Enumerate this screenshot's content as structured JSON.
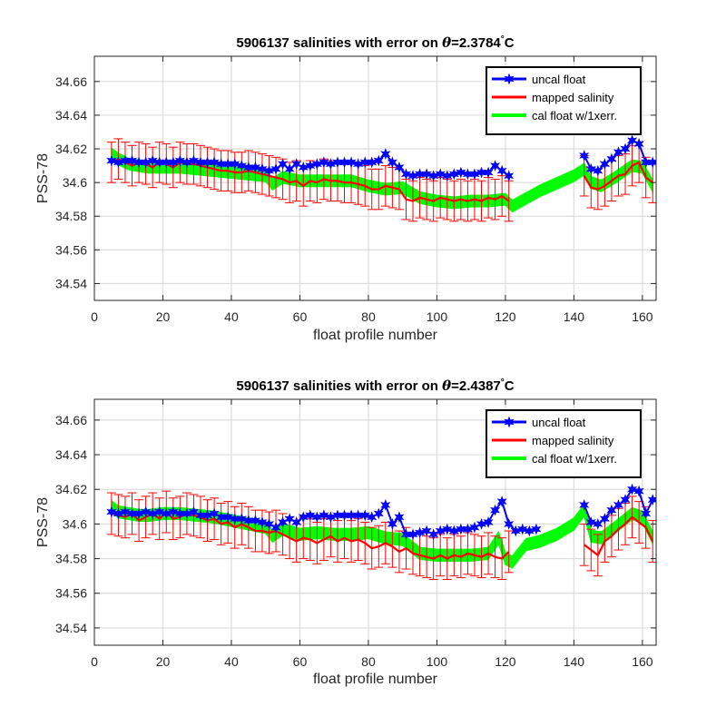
{
  "chart_data": [
    {
      "type": "line",
      "title": "5906137 salinities with error on θ=2.3784°C",
      "title_prefix": "5906137 salinities with error on ",
      "title_theta": "θ",
      "title_value": "=2.3784",
      "title_degree": "°",
      "title_unit": "C",
      "xlabel": "float profile number",
      "ylabel": "PSS-78",
      "xlim": [
        0,
        164
      ],
      "ylim": [
        34.53,
        34.675
      ],
      "xticks": [
        0,
        20,
        40,
        60,
        80,
        100,
        120,
        140,
        160
      ],
      "xtick_labels": [
        "0",
        "20",
        "40",
        "60",
        "80",
        "100",
        "120",
        "140",
        "160"
      ],
      "yticks": [
        34.54,
        34.56,
        34.58,
        34.6,
        34.62,
        34.64,
        34.66
      ],
      "ytick_labels": [
        "34.54",
        "34.56",
        "34.58",
        "34.6",
        "34.62",
        "34.64",
        "34.66"
      ],
      "grid": true,
      "legend_position": "top-right",
      "colors": {
        "uncal": "#0000ff",
        "mapped": "#ff0000",
        "cal": "#00ff00"
      },
      "series": [
        {
          "name": "uncal float",
          "marker": "star",
          "x": [
            5,
            7,
            9,
            11,
            13,
            15,
            17,
            19,
            21,
            23,
            25,
            27,
            29,
            31,
            33,
            35,
            37,
            39,
            41,
            43,
            45,
            47,
            49,
            51,
            53,
            55,
            57,
            59,
            61,
            63,
            65,
            67,
            69,
            71,
            73,
            75,
            77,
            79,
            81,
            83,
            85,
            87,
            89,
            91,
            93,
            95,
            97,
            99,
            101,
            103,
            105,
            107,
            109,
            111,
            113,
            115,
            117,
            119,
            121,
            143,
            145,
            147,
            149,
            151,
            153,
            155,
            157,
            159,
            161,
            163
          ],
          "values": [
            34.613,
            34.612,
            34.613,
            34.613,
            34.612,
            34.612,
            34.613,
            34.612,
            34.612,
            34.612,
            34.613,
            34.612,
            34.613,
            34.612,
            34.612,
            34.612,
            34.611,
            34.611,
            34.611,
            34.61,
            34.609,
            34.609,
            34.608,
            34.607,
            34.608,
            34.611,
            34.608,
            34.611,
            34.609,
            34.61,
            34.611,
            34.612,
            34.611,
            34.612,
            34.612,
            34.612,
            34.611,
            34.612,
            34.612,
            34.613,
            34.617,
            34.612,
            34.609,
            34.605,
            34.604,
            34.605,
            34.605,
            34.604,
            34.605,
            34.604,
            34.605,
            34.606,
            34.605,
            34.605,
            34.606,
            34.606,
            34.61,
            34.607,
            34.604,
            34.616,
            34.608,
            34.607,
            34.611,
            34.614,
            34.618,
            34.62,
            34.625,
            34.623,
            34.612,
            34.612
          ]
        },
        {
          "name": "mapped salinity",
          "x": [
            5,
            7,
            9,
            11,
            13,
            15,
            17,
            19,
            21,
            23,
            25,
            27,
            29,
            31,
            33,
            35,
            37,
            39,
            41,
            43,
            45,
            47,
            49,
            51,
            53,
            55,
            57,
            59,
            61,
            63,
            65,
            67,
            69,
            71,
            73,
            75,
            77,
            79,
            81,
            83,
            85,
            87,
            89,
            91,
            93,
            95,
            97,
            99,
            101,
            103,
            105,
            107,
            109,
            111,
            113,
            115,
            117,
            119,
            121,
            143,
            145,
            147,
            149,
            151,
            153,
            155,
            157,
            159,
            161,
            163
          ],
          "values": [
            34.612,
            34.614,
            34.612,
            34.61,
            34.612,
            34.611,
            34.609,
            34.612,
            34.611,
            34.609,
            34.612,
            34.611,
            34.611,
            34.61,
            34.609,
            34.608,
            34.607,
            34.607,
            34.606,
            34.606,
            34.607,
            34.606,
            34.605,
            34.604,
            34.603,
            34.602,
            34.6,
            34.601,
            34.598,
            34.601,
            34.6,
            34.602,
            34.601,
            34.601,
            34.6,
            34.6,
            34.599,
            34.598,
            34.596,
            34.596,
            34.598,
            34.597,
            34.596,
            34.59,
            34.589,
            34.591,
            34.59,
            34.589,
            34.591,
            34.59,
            34.589,
            34.59,
            34.589,
            34.59,
            34.589,
            34.591,
            34.59,
            34.592,
            34.589,
            34.604,
            34.597,
            34.596,
            34.598,
            34.601,
            34.604,
            34.605,
            34.61,
            34.612,
            34.603,
            34.6
          ],
          "error": 0.012
        },
        {
          "name": "cal float w/1xerr.",
          "x": [
            5,
            7,
            10,
            13,
            16,
            20,
            25,
            30,
            35,
            40,
            45,
            50,
            52,
            55,
            60,
            65,
            70,
            75,
            80,
            85,
            90,
            95,
            100,
            105,
            110,
            115,
            120,
            122,
            130,
            140,
            143,
            145,
            148,
            152,
            157,
            160,
            163
          ],
          "values": [
            34.617,
            34.614,
            34.611,
            34.61,
            34.609,
            34.609,
            34.609,
            34.608,
            34.607,
            34.606,
            34.605,
            34.604,
            34.599,
            34.603,
            34.601,
            34.601,
            34.601,
            34.601,
            34.598,
            34.596,
            34.597,
            34.591,
            34.589,
            34.588,
            34.589,
            34.589,
            34.59,
            34.586,
            34.595,
            34.604,
            34.608,
            34.6,
            34.598,
            34.603,
            34.61,
            34.609,
            34.598
          ],
          "band_halfwidth": 0.0035
        }
      ]
    },
    {
      "type": "line",
      "title": "5906137 salinities with error on θ=2.4387°C",
      "title_prefix": "5906137 salinities with error on ",
      "title_theta": "θ",
      "title_value": "=2.4387",
      "title_degree": "°",
      "title_unit": "C",
      "xlabel": "float profile number",
      "ylabel": "PSS-78",
      "xlim": [
        0,
        164
      ],
      "ylim": [
        34.53,
        34.672
      ],
      "xticks": [
        0,
        20,
        40,
        60,
        80,
        100,
        120,
        140,
        160
      ],
      "xtick_labels": [
        "0",
        "20",
        "40",
        "60",
        "80",
        "100",
        "120",
        "140",
        "160"
      ],
      "yticks": [
        34.54,
        34.56,
        34.58,
        34.6,
        34.62,
        34.64,
        34.66
      ],
      "ytick_labels": [
        "34.54",
        "34.56",
        "34.58",
        "34.6",
        "34.62",
        "34.64",
        "34.66"
      ],
      "grid": true,
      "legend_position": "top-right",
      "colors": {
        "uncal": "#0000ff",
        "mapped": "#ff0000",
        "cal": "#00ff00"
      },
      "series": [
        {
          "name": "uncal float",
          "marker": "star",
          "x": [
            5,
            7,
            9,
            11,
            13,
            15,
            17,
            19,
            21,
            23,
            25,
            27,
            29,
            31,
            33,
            35,
            37,
            39,
            41,
            43,
            45,
            47,
            49,
            51,
            53,
            55,
            57,
            59,
            61,
            63,
            65,
            67,
            69,
            71,
            73,
            75,
            77,
            79,
            81,
            83,
            85,
            87,
            89,
            91,
            93,
            95,
            97,
            99,
            101,
            103,
            105,
            107,
            109,
            111,
            113,
            115,
            117,
            119,
            121,
            123,
            125,
            127,
            129,
            143,
            145,
            147,
            149,
            151,
            153,
            155,
            157,
            159,
            161,
            163
          ],
          "values": [
            34.607,
            34.606,
            34.607,
            34.606,
            34.606,
            34.607,
            34.606,
            34.607,
            34.606,
            34.607,
            34.606,
            34.606,
            34.607,
            34.605,
            34.605,
            34.606,
            34.604,
            34.604,
            34.603,
            34.603,
            34.602,
            34.602,
            34.601,
            34.6,
            34.598,
            34.601,
            34.603,
            34.601,
            34.604,
            34.605,
            34.604,
            34.605,
            34.604,
            34.605,
            34.605,
            34.605,
            34.605,
            34.605,
            34.604,
            34.606,
            34.611,
            34.6,
            34.604,
            34.594,
            34.594,
            34.595,
            34.596,
            34.594,
            34.596,
            34.597,
            34.596,
            34.597,
            34.597,
            34.598,
            34.6,
            34.601,
            34.608,
            34.613,
            34.6,
            34.596,
            34.597,
            34.596,
            34.597,
            34.611,
            34.601,
            34.6,
            34.603,
            34.608,
            34.611,
            34.614,
            34.62,
            34.619,
            34.606,
            34.614
          ]
        },
        {
          "name": "mapped salinity",
          "x": [
            5,
            7,
            9,
            11,
            13,
            15,
            17,
            19,
            21,
            23,
            25,
            27,
            29,
            31,
            33,
            35,
            37,
            39,
            41,
            43,
            45,
            47,
            49,
            51,
            53,
            55,
            57,
            59,
            61,
            63,
            65,
            67,
            69,
            71,
            73,
            75,
            77,
            79,
            81,
            83,
            85,
            87,
            89,
            91,
            93,
            95,
            97,
            99,
            101,
            103,
            105,
            107,
            109,
            111,
            113,
            115,
            117,
            119,
            121,
            143,
            145,
            147,
            149,
            151,
            153,
            155,
            157,
            159,
            161,
            163
          ],
          "values": [
            34.606,
            34.605,
            34.604,
            34.606,
            34.602,
            34.604,
            34.606,
            34.603,
            34.607,
            34.603,
            34.604,
            34.606,
            34.605,
            34.604,
            34.602,
            34.603,
            34.6,
            34.601,
            34.598,
            34.6,
            34.598,
            34.596,
            34.596,
            34.595,
            34.596,
            34.594,
            34.592,
            34.59,
            34.592,
            34.591,
            34.589,
            34.591,
            34.593,
            34.59,
            34.592,
            34.59,
            34.591,
            34.589,
            34.586,
            34.587,
            34.589,
            34.587,
            34.584,
            34.586,
            34.583,
            34.582,
            34.581,
            34.58,
            34.582,
            34.58,
            34.582,
            34.581,
            34.583,
            34.582,
            34.581,
            34.583,
            34.581,
            34.58,
            34.584,
            34.588,
            34.585,
            34.582,
            34.59,
            34.593,
            34.597,
            34.6,
            34.604,
            34.601,
            34.598,
            34.59
          ],
          "error": 0.012
        },
        {
          "name": "cal float w/1xerr.",
          "x": [
            5,
            7,
            10,
            13,
            16,
            20,
            25,
            30,
            35,
            40,
            45,
            50,
            52,
            55,
            60,
            65,
            70,
            75,
            80,
            85,
            90,
            95,
            100,
            105,
            110,
            115,
            118,
            120,
            122,
            126,
            130,
            135,
            140,
            143,
            145,
            148,
            152,
            157,
            160,
            163
          ],
          "values": [
            34.61,
            34.607,
            34.606,
            34.605,
            34.605,
            34.606,
            34.606,
            34.605,
            34.604,
            34.602,
            34.6,
            34.598,
            34.593,
            34.597,
            34.594,
            34.595,
            34.594,
            34.594,
            34.595,
            34.592,
            34.591,
            34.583,
            34.582,
            34.582,
            34.582,
            34.583,
            34.592,
            34.58,
            34.578,
            34.588,
            34.59,
            34.594,
            34.6,
            34.608,
            34.593,
            34.592,
            34.598,
            34.606,
            34.604,
            34.592
          ],
          "band_halfwidth": 0.0035
        }
      ]
    }
  ]
}
